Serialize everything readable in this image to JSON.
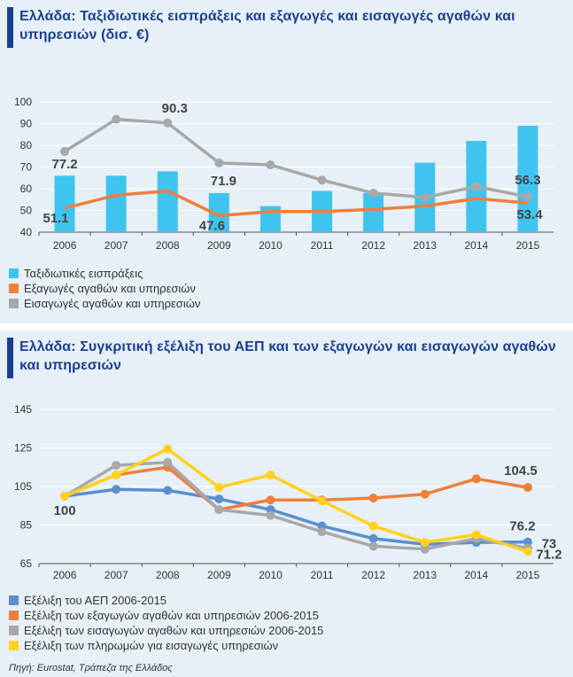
{
  "chart_data": [
    {
      "type": "bar",
      "title": "Ελλάδα: Ταξιδιωτικές εισπράξεις και εξαγωγές και εισαγωγές αγαθών και υπηρεσιών (δισ. €)",
      "categories": [
        "2006",
        "2007",
        "2008",
        "2009",
        "2010",
        "2011",
        "2012",
        "2013",
        "2014",
        "2015"
      ],
      "ylim": [
        40,
        100
      ],
      "yticks": [
        40,
        50,
        60,
        70,
        80,
        90,
        100
      ],
      "grid": true,
      "legend_position": "bottom-left",
      "series": [
        {
          "name": "Ταξιδιωτικές εισπράξεις",
          "type": "bar",
          "color": "#3fc4ef",
          "values": [
            66,
            66,
            68,
            58,
            52,
            59,
            58,
            72,
            82,
            89
          ]
        },
        {
          "name": "Εξαγωγές αγαθών και υπηρεσιών",
          "type": "line",
          "color": "#f07f3c",
          "values": [
            51.1,
            57,
            59,
            47.6,
            49.5,
            49.5,
            50.5,
            52,
            55.5,
            53.4
          ]
        },
        {
          "name": "Εισαγωγές αγαθών και υπηρεσιών",
          "type": "line",
          "color": "#a8a8a8",
          "values": [
            77.2,
            92,
            90.3,
            71.9,
            71,
            64,
            58,
            56,
            61,
            56.3
          ]
        }
      ],
      "data_labels": [
        {
          "text": "77.2",
          "series": 2,
          "index": 0
        },
        {
          "text": "90.3",
          "series": 2,
          "index": 2
        },
        {
          "text": "71.9",
          "series": 2,
          "index": 3
        },
        {
          "text": "56.3",
          "series": 2,
          "index": 9
        },
        {
          "text": "51.1",
          "series": 1,
          "index": 0
        },
        {
          "text": "47.6",
          "series": 1,
          "index": 3
        },
        {
          "text": "53.4",
          "series": 1,
          "index": 9
        }
      ]
    },
    {
      "type": "line",
      "title": "Ελλάδα: Συγκριτική εξέλιξη του ΑΕΠ και των εξαγωγών και εισαγωγών αγαθών και υπηρεσιών",
      "categories": [
        "2006",
        "2007",
        "2008",
        "2009",
        "2010",
        "2011",
        "2012",
        "2013",
        "2014",
        "2015"
      ],
      "ylim": [
        65,
        145
      ],
      "yticks": [
        65,
        85,
        105,
        125,
        145
      ],
      "grid": true,
      "legend_position": "bottom-left",
      "series": [
        {
          "name": "Εξέλιξη του ΑΕΠ 2006-2015",
          "color": "#5b8fd0",
          "values": [
            100,
            103.5,
            103,
            98.5,
            93,
            84.5,
            78,
            75,
            76,
            76.2
          ]
        },
        {
          "name": "Εξέλιξη των εξαγωγών αγαθών και υπηρεσιών 2006-2015",
          "color": "#f07f3c",
          "values": [
            100,
            111,
            115,
            93,
            98,
            98,
            99,
            101,
            109,
            104.5
          ]
        },
        {
          "name": "Εξέλιξη των εισαγωγών αγαθών και υπηρεσιών 2006-2015",
          "color": "#a8a8a8",
          "values": [
            100,
            116,
            117.5,
            93,
            90,
            81.5,
            74,
            72.5,
            78,
            73
          ]
        },
        {
          "name": "Εξέλιξη των πληρωμών για εισαγωγές υπηρεσιών",
          "color": "#ffd21f",
          "values": [
            100,
            111,
            124.5,
            104.5,
            111,
            97.5,
            84.5,
            76,
            80,
            71.2
          ]
        }
      ],
      "data_labels": [
        {
          "text": "100",
          "series": 0,
          "index": 0
        },
        {
          "text": "104.5",
          "series": 1,
          "index": 9
        },
        {
          "text": "76.2",
          "series": 0,
          "index": 9
        },
        {
          "text": "73",
          "series": 2,
          "index": 9
        },
        {
          "text": "71.2",
          "series": 3,
          "index": 9
        }
      ]
    }
  ],
  "source": "Πηγή: Eurostat, Τράπεζα της Ελλάδος"
}
